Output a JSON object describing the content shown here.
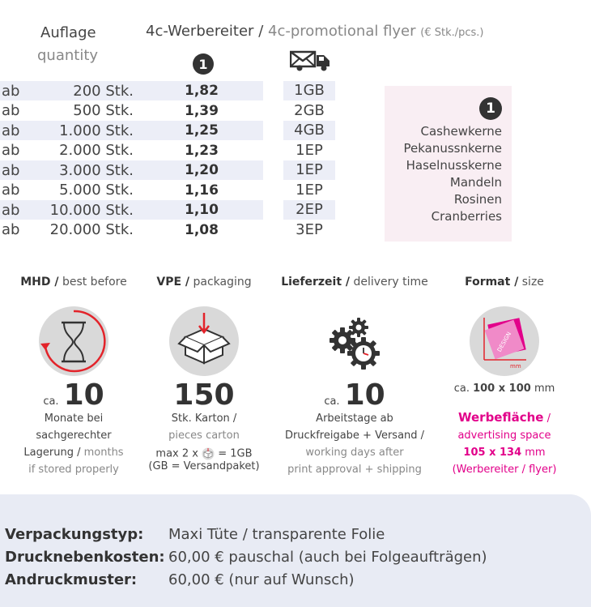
{
  "header": {
    "auflage": "Auflage",
    "quantity": "quantity",
    "product_de": "4c-Werbereiter",
    "separator": "/",
    "product_en": "4c-promotional flyer",
    "unit": "(€ Stk./pcs.)",
    "column_badge": "1"
  },
  "prices": [
    {
      "ab": "ab",
      "qty": "200 Stk.",
      "price": "1,82",
      "ship": "1GB"
    },
    {
      "ab": "ab",
      "qty": "500 Stk.",
      "price": "1,39",
      "ship": "2GB"
    },
    {
      "ab": "ab",
      "qty": "1.000 Stk.",
      "price": "1,25",
      "ship": "4GB"
    },
    {
      "ab": "ab",
      "qty": "2.000 Stk.",
      "price": "1,23",
      "ship": "1EP"
    },
    {
      "ab": "ab",
      "qty": "3.000 Stk.",
      "price": "1,20",
      "ship": "1EP"
    },
    {
      "ab": "ab",
      "qty": "5.000 Stk.",
      "price": "1,16",
      "ship": "1EP"
    },
    {
      "ab": "ab",
      "qty": "10.000 Stk.",
      "price": "1,10",
      "ship": "2EP"
    },
    {
      "ab": "ab",
      "qty": "20.000 Stk.",
      "price": "1,08",
      "ship": "3EP"
    }
  ],
  "ingredients": {
    "badge": "1",
    "items": [
      "Cashewkerne",
      "Pekanussnkerne",
      "Haselnusskerne",
      "Mandeln",
      "Rosinen",
      "Cranberries"
    ]
  },
  "info": {
    "mhd": {
      "title_de": "MHD /",
      "title_en": "best before",
      "ca": "ca.",
      "value": "10",
      "line1": "Monate bei",
      "line2": "sachgerechter",
      "line3_de": "Lagerung /",
      "line3_en": "months",
      "line4": "if stored properly",
      "icon": "hourglass-icon"
    },
    "vpe": {
      "title_de": "VPE /",
      "title_en": "packaging",
      "value": "150",
      "line1": "Stk. Karton /",
      "line2": "pieces carton",
      "line3_pre": "max 2 x",
      "line3_post": "= 1GB",
      "line4": "(GB = Versandpaket)",
      "icon": "box-icon"
    },
    "lieferzeit": {
      "title_de": "Lieferzeit /",
      "title_en": "delivery time",
      "ca": "ca.",
      "value": "10",
      "line1": "Arbeitstage ab",
      "line2": "Druckfreigabe + Versand /",
      "line3": "working days after",
      "line4": "print approval + shipping",
      "icon": "gears-clock-icon"
    },
    "format": {
      "title_de": "Format /",
      "title_en": "size",
      "size_pre": "ca.",
      "size_value": "100 x 100",
      "size_unit": "mm",
      "line1_de": "Werbefläche",
      "line1_sep": "/",
      "line2": "advertising space",
      "line3_value": "105 x 134",
      "line3_unit": "mm",
      "line4": "(Werbereiter / flyer)",
      "icon": "format-icon",
      "icon_text": "DESIGN",
      "icon_unit": "mm"
    }
  },
  "footer": [
    {
      "label": "Verpackungstyp:",
      "value": "Maxi Tüte / transparente Folie"
    },
    {
      "label": "Drucknebenkosten:",
      "value": "60,00 € pauschal (auch bei Folgeaufträgen)"
    },
    {
      "label": "Andruckmuster:",
      "value": "60,00 € (nur auf Wunsch)"
    }
  ],
  "colors": {
    "accent_pink": "#e2008a",
    "accent_red": "#e3232a",
    "row_shade": "#eceef7",
    "ingredient_bg": "#f9eef3",
    "footer_bg": "#e8ebf4"
  }
}
